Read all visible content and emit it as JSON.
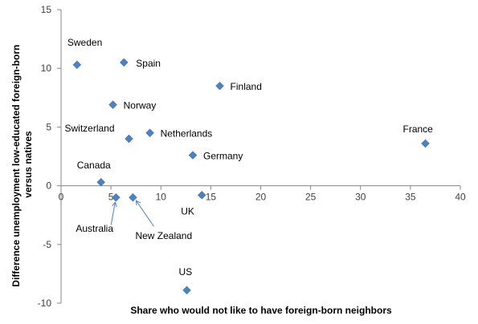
{
  "chart_data": {
    "type": "scatter",
    "xlabel": "Share who would not like to have foreign-born neighbors",
    "ylabel": [
      "Difference unemployment low-educated foreign-born",
      "versus natives"
    ],
    "xlim": [
      0,
      40
    ],
    "ylim": [
      -10,
      15
    ],
    "x_ticks": [
      "0",
      "5",
      "10",
      "15",
      "20",
      "25",
      "30",
      "35",
      "40"
    ],
    "y_ticks": [
      "15",
      "10",
      "5",
      "0",
      "-5",
      "-10"
    ],
    "grid": false,
    "marker_color": "#4F81BD",
    "points": [
      {
        "label": "Sweden",
        "x": 1.6,
        "y": 10.3
      },
      {
        "label": "Spain",
        "x": 6.3,
        "y": 10.5
      },
      {
        "label": "Finland",
        "x": 15.9,
        "y": 8.5
      },
      {
        "label": "Norway",
        "x": 5.2,
        "y": 6.9
      },
      {
        "label": "Switzerland",
        "x": 6.8,
        "y": 4.0
      },
      {
        "label": "Netherlands",
        "x": 8.9,
        "y": 4.5
      },
      {
        "label": "Germany",
        "x": 13.2,
        "y": 2.6
      },
      {
        "label": "France",
        "x": 36.5,
        "y": 3.6
      },
      {
        "label": "Canada",
        "x": 4.0,
        "y": 0.3
      },
      {
        "label": "Australia",
        "x": 5.5,
        "y": -1.0
      },
      {
        "label": "New Zealand",
        "x": 7.2,
        "y": -1.0
      },
      {
        "label": "UK",
        "x": 14.1,
        "y": -0.8
      },
      {
        "label": "US",
        "x": 12.6,
        "y": -8.9
      }
    ]
  }
}
